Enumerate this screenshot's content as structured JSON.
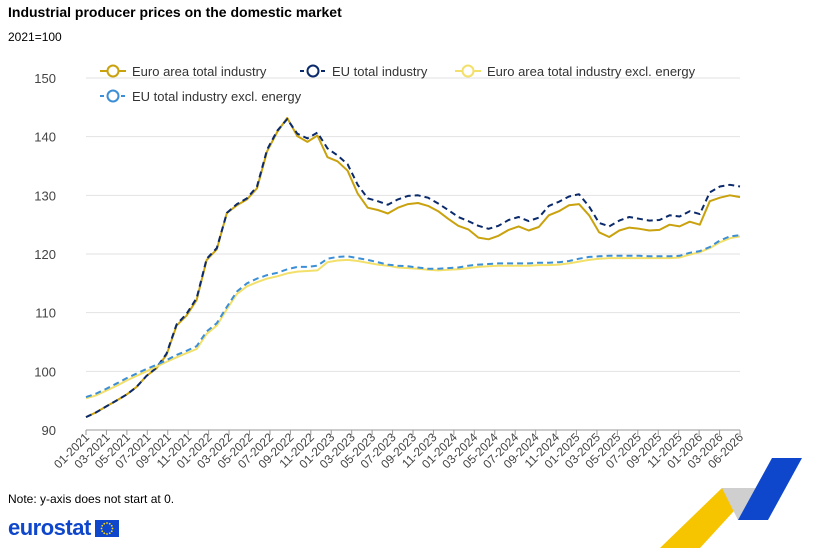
{
  "header": {
    "title": "Industrial producer prices on the domestic market",
    "subtitle": "2021=100"
  },
  "footer": {
    "note": "Note: y-axis does not start at 0.",
    "logo_text": "eurostat"
  },
  "colors": {
    "euro_area": "#c9a20e",
    "eu": "#0b2a6b",
    "euro_area_excl_energy": "#f2e06a",
    "eu_excl_energy": "#3c8fd6",
    "grid": "#e2e2e2",
    "brand_yellow": "#f7c400",
    "brand_blue": "#0e47cb",
    "brand_grey": "#cfcfcf"
  },
  "chart_data": {
    "type": "line",
    "ylim": [
      90,
      150
    ],
    "yticks": [
      90,
      100,
      110,
      120,
      130,
      140,
      150
    ],
    "xtick_labels": [
      "01-2021",
      "03-2021",
      "05-2021",
      "07-2021",
      "09-2021",
      "11-2021",
      "01-2022",
      "03-2022",
      "05-2022",
      "07-2022",
      "09-2022",
      "11-2022",
      "01-2023",
      "03-2023",
      "05-2023",
      "07-2023",
      "09-2023",
      "11-2023",
      "01-2024",
      "03-2024",
      "05-2024",
      "07-2024",
      "09-2024",
      "11-2024",
      "01-2025",
      "03-2025",
      "05-2025",
      "07-2025",
      "09-2025",
      "11-2025",
      "01-2026",
      "03-2026",
      "06-2026"
    ],
    "grid": true,
    "legend_position": "top",
    "series": [
      {
        "name": "Euro area total industry",
        "color_key": "euro_area",
        "dashed": false,
        "values": [
          92.2,
          93.0,
          94.0,
          95.0,
          96.0,
          97.3,
          99.2,
          100.5,
          102.8,
          107.8,
          109.5,
          112.2,
          119.0,
          120.8,
          127.0,
          128.3,
          129.3,
          131.2,
          137.5,
          140.8,
          143.2,
          140.1,
          139.1,
          140.2,
          136.5,
          135.8,
          134.2,
          130.3,
          127.9,
          127.5,
          126.9,
          127.9,
          128.5,
          128.7,
          128.2,
          127.3,
          126.0,
          124.8,
          124.2,
          122.8,
          122.5,
          123.1,
          124.1,
          124.7,
          124.0,
          124.6,
          126.6,
          127.3,
          128.3,
          128.5,
          126.6,
          123.7,
          122.9,
          124.0,
          124.5,
          124.3,
          124.0,
          124.1,
          125.0,
          124.7,
          125.5,
          125.0,
          129.0,
          129.6,
          130.0,
          129.7
        ]
      },
      {
        "name": "EU total industry",
        "color_key": "eu",
        "dashed": true,
        "values": [
          92.2,
          93.0,
          94.0,
          95.0,
          96.0,
          97.3,
          99.2,
          100.6,
          103.0,
          108.0,
          109.8,
          112.5,
          119.2,
          121.0,
          127.0,
          128.5,
          129.5,
          131.5,
          137.8,
          141.0,
          143.0,
          140.5,
          139.7,
          140.7,
          138.0,
          136.8,
          135.3,
          131.8,
          129.5,
          129.0,
          128.4,
          129.3,
          129.9,
          130.0,
          129.6,
          128.6,
          127.5,
          126.3,
          125.6,
          124.8,
          124.3,
          124.8,
          125.8,
          126.3,
          125.6,
          126.2,
          128.2,
          128.9,
          129.8,
          130.2,
          128.1,
          125.3,
          124.7,
          125.7,
          126.3,
          126.0,
          125.7,
          125.8,
          126.6,
          126.4,
          127.3,
          126.8,
          130.5,
          131.5,
          131.8,
          131.5
        ]
      },
      {
        "name": "Euro area total industry excl. energy",
        "color_key": "euro_area_excl_energy",
        "dashed": false,
        "values": [
          95.4,
          95.9,
          96.7,
          97.5,
          98.4,
          99.2,
          100.0,
          100.8,
          101.6,
          102.4,
          103.1,
          103.8,
          106.4,
          107.8,
          110.6,
          113.2,
          114.5,
          115.2,
          115.8,
          116.2,
          116.7,
          117.0,
          117.1,
          117.2,
          118.6,
          118.9,
          119.0,
          118.8,
          118.5,
          118.2,
          118.0,
          117.7,
          117.6,
          117.5,
          117.3,
          117.2,
          117.3,
          117.4,
          117.6,
          117.8,
          117.9,
          118.0,
          118.0,
          118.0,
          118.0,
          118.1,
          118.1,
          118.2,
          118.4,
          118.7,
          119.0,
          119.2,
          119.3,
          119.3,
          119.3,
          119.3,
          119.3,
          119.3,
          119.3,
          119.4,
          119.9,
          120.3,
          121.0,
          122.0,
          122.7,
          123.0
        ]
      },
      {
        "name": "EU total industry excl. energy",
        "color_key": "eu_excl_energy",
        "dashed": true,
        "values": [
          95.6,
          96.2,
          97.0,
          97.9,
          98.8,
          99.6,
          100.4,
          101.1,
          101.9,
          102.8,
          103.5,
          104.3,
          106.8,
          108.2,
          111.0,
          113.6,
          115.0,
          115.8,
          116.4,
          116.8,
          117.4,
          117.8,
          117.8,
          118.0,
          119.2,
          119.5,
          119.6,
          119.3,
          119.0,
          118.6,
          118.2,
          118.0,
          117.9,
          117.7,
          117.5,
          117.5,
          117.6,
          117.7,
          118.0,
          118.2,
          118.3,
          118.4,
          118.4,
          118.4,
          118.4,
          118.5,
          118.5,
          118.6,
          118.8,
          119.2,
          119.5,
          119.6,
          119.7,
          119.7,
          119.7,
          119.7,
          119.6,
          119.6,
          119.6,
          119.7,
          120.2,
          120.5,
          121.2,
          122.3,
          123.0,
          123.2
        ]
      }
    ]
  }
}
